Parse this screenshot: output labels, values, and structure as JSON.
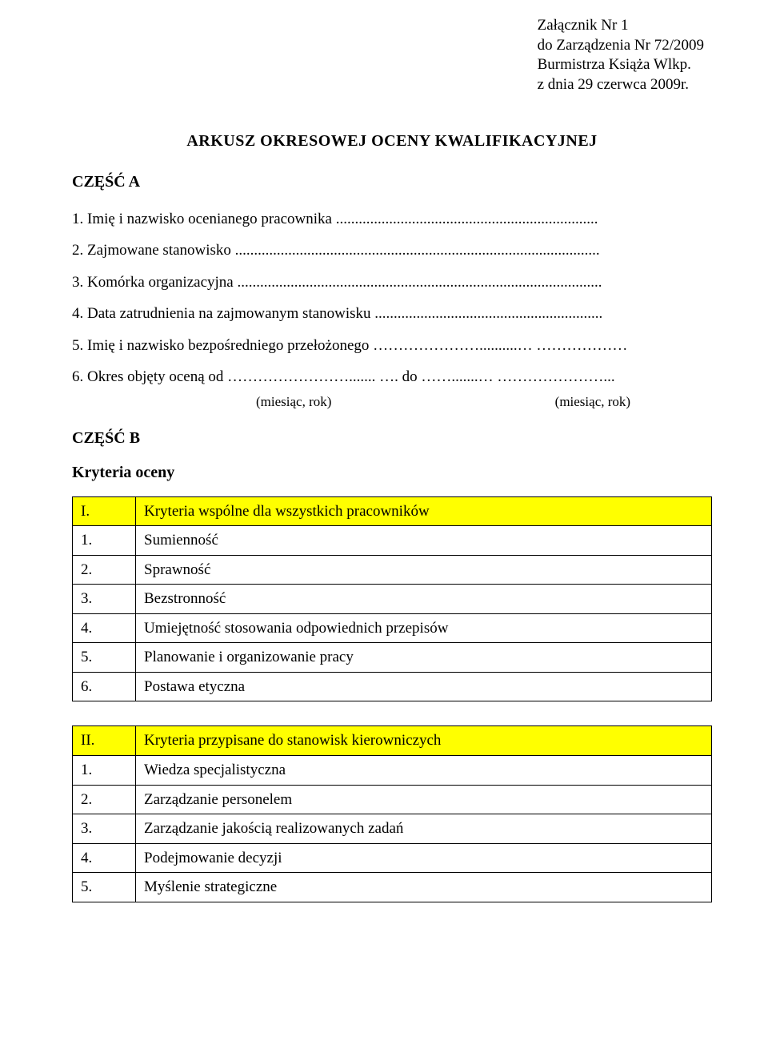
{
  "attachment": {
    "line1": "Załącznik Nr 1",
    "line2": "do Zarządzenia Nr 72/2009",
    "line3": "Burmistrza Książa Wlkp.",
    "line4": "z dnia 29 czerwca 2009r."
  },
  "title": "ARKUSZ  OKRESOWEJ  OCENY  KWALIFIKACYJNEJ",
  "partA": {
    "label": "CZĘŚĆ A",
    "fields": {
      "f1": "1.   Imię i nazwisko ocenianego pracownika .....................................................................",
      "f2": "2.   Zajmowane stanowisko ................................................................................................",
      "f3": "3.   Komórka organizacyjna ................................................................................................",
      "f4": "4.   Data zatrudnienia na zajmowanym stanowisku ............................................................",
      "f5": "5.   Imię i nazwisko bezpośredniego przełożonego …………………..........… ………………",
      "f6": "6.   Okres objęty oceną od ……………………....... …. do …….......… …………………..."
    },
    "month_left": "(miesiąc, rok)",
    "month_right": "(miesiąc, rok)"
  },
  "partB": {
    "label": "CZĘŚĆ B",
    "subheading": "Kryteria oceny",
    "table1": {
      "header_num": "I.",
      "header_text": "Kryteria wspólne dla wszystkich pracowników",
      "rows": [
        {
          "n": "1.",
          "t": "Sumienność"
        },
        {
          "n": "2.",
          "t": "Sprawność"
        },
        {
          "n": "3.",
          "t": "Bezstronność"
        },
        {
          "n": "4.",
          "t": "Umiejętność stosowania odpowiednich przepisów"
        },
        {
          "n": "5.",
          "t": "Planowanie i organizowanie pracy"
        },
        {
          "n": "6.",
          "t": "Postawa etyczna"
        }
      ]
    },
    "table2": {
      "header_num": "II.",
      "header_text": "Kryteria przypisane do stanowisk kierowniczych",
      "rows": [
        {
          "n": "1.",
          "t": "Wiedza specjalistyczna"
        },
        {
          "n": "2.",
          "t": "Zarządzanie personelem"
        },
        {
          "n": "3.",
          "t": "Zarządzanie jakością realizowanych zadań"
        },
        {
          "n": "4.",
          "t": "Podejmowanie decyzji"
        },
        {
          "n": "5.",
          "t": "Myślenie strategiczne"
        }
      ]
    }
  },
  "highlight_color": "#ffff00",
  "text_color": "#000000",
  "background_color": "#ffffff"
}
